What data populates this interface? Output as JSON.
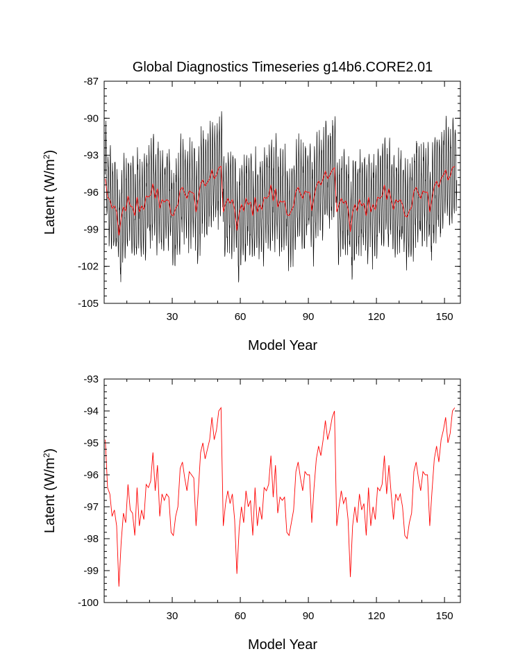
{
  "chart_data": [
    {
      "type": "line",
      "title": "Global Diagnostics Timeseries g14b6.CORE2.01",
      "xlabel": "Model Year",
      "ylabel": "Latent (W/m",
      "ylabel_sup": "2",
      "ylabel_close": ")",
      "xlim": [
        0,
        157
      ],
      "ylim": [
        -105,
        -87
      ],
      "xticks": [
        30,
        60,
        90,
        120,
        150
      ],
      "yticks": [
        -87,
        -90,
        -93,
        -96,
        -99,
        -102,
        -105
      ],
      "series": [
        {
          "color": "#000000",
          "resolution": "monthly",
          "base": "annual",
          "amplitude": 3.6,
          "values": []
        },
        {
          "color": "#ff0000",
          "resolution": "annual",
          "base": "annual",
          "values": []
        }
      ]
    },
    {
      "type": "line",
      "title": "",
      "xlabel": "Model Year",
      "ylabel": "Latent (W/m",
      "ylabel_sup": "2",
      "ylabel_close": ")",
      "xlim": [
        0,
        157
      ],
      "ylim": [
        -100,
        -93
      ],
      "xticks": [
        30,
        60,
        90,
        120,
        150
      ],
      "yticks": [
        -93,
        -94,
        -95,
        -96,
        -97,
        -98,
        -99,
        -100
      ],
      "series": [
        {
          "color": "#ff0000",
          "resolution": "annual",
          "base": "annual",
          "values": []
        }
      ]
    }
  ],
  "annual": [
    -94.9,
    -96.4,
    -96.6,
    -97.3,
    -97.1,
    -97.6,
    -99.5,
    -98.1,
    -97.2,
    -97.5,
    -96.3,
    -97.1,
    -97.2,
    -97.9,
    -96.4,
    -97.6,
    -97.1,
    -97.4,
    -96.3,
    -96.4,
    -96.2,
    -95.3,
    -96.5,
    -95.7,
    -97.3,
    -96.6,
    -96.8,
    -96.6,
    -96.7,
    -97.8,
    -97.9,
    -97.3,
    -97.0,
    -95.8,
    -95.6,
    -96.1,
    -96.5,
    -95.9,
    -96.0,
    -96.1,
    -97.6,
    -96.5,
    -95.3,
    -95.0,
    -95.5,
    -95.2,
    -94.9,
    -94.2,
    -94.9,
    -94.6,
    -94.0,
    -93.9,
    -97.6,
    -96.9,
    -96.5,
    -96.9,
    -96.6,
    -97.4,
    -99.1,
    -97.7,
    -97.0,
    -97.5,
    -96.5,
    -97.0,
    -96.8,
    -97.9,
    -96.4,
    -97.6,
    -97.0,
    -97.4,
    -96.4,
    -96.5,
    -96.3,
    -95.4,
    -96.7,
    -95.7,
    -97.2,
    -96.7,
    -96.8,
    -96.7,
    -97.8,
    -97.9,
    -97.5,
    -97.1,
    -95.9,
    -95.6,
    -96.1,
    -96.5,
    -95.9,
    -96.0,
    -96.0,
    -97.5,
    -96.4,
    -95.5,
    -95.1,
    -95.4,
    -94.9,
    -94.3,
    -94.9,
    -94.6,
    -94.2,
    -94.0,
    -97.6,
    -97.0,
    -96.5,
    -96.9,
    -96.7,
    -97.4,
    -99.2,
    -97.6,
    -97.0,
    -97.5,
    -96.6,
    -97.1,
    -96.9,
    -97.9,
    -96.4,
    -97.6,
    -97.0,
    -97.4,
    -96.4,
    -96.5,
    -96.3,
    -95.4,
    -96.6,
    -95.7,
    -96.6,
    -97.4,
    -96.6,
    -96.8,
    -96.6,
    -97.0,
    -97.9,
    -98.0,
    -97.5,
    -97.2,
    -95.9,
    -95.6,
    -96.1,
    -96.5,
    -95.9,
    -96.0,
    -96.0,
    -97.6,
    -96.5,
    -95.5,
    -95.1,
    -95.6,
    -94.9,
    -94.6,
    -94.2,
    -95.0,
    -94.7,
    -94.0,
    -93.9
  ]
}
